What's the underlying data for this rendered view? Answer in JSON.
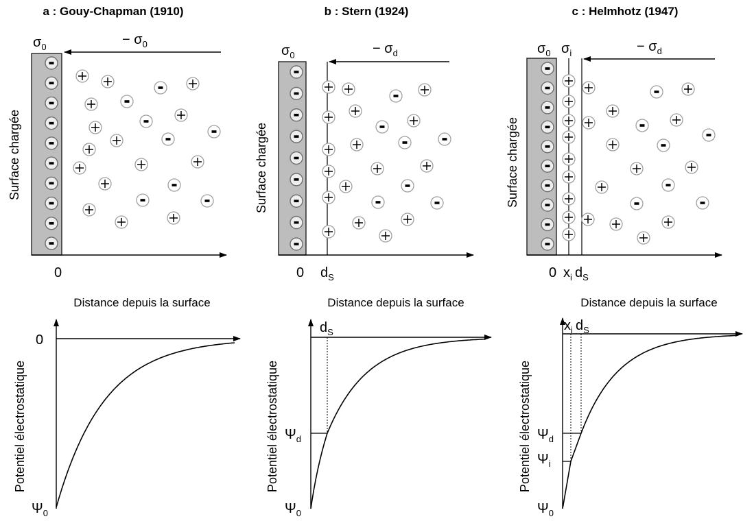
{
  "panels": [
    {
      "title": "a : Gouy-Chapman (1910)",
      "sigma_surface": {
        "base": "σ",
        "sub": "0"
      },
      "sigma_diffuse": {
        "base": "− σ",
        "sub": "0"
      },
      "surface_label": "Surface chargée",
      "x_origin": "0",
      "distance_label": "Distance depuis la surface",
      "potential_label": "Potentiel électrostatique",
      "potential_zero": "0",
      "psi_0": {
        "base": "Ψ",
        "sub": "0"
      }
    },
    {
      "title": "b : Stern (1924)",
      "sigma_surface": {
        "base": "σ",
        "sub": "0"
      },
      "sigma_diffuse": {
        "base": "− σ",
        "sub": "d"
      },
      "surface_label": "Surface chargée",
      "x_origin": "0",
      "x_stern": {
        "base": "d",
        "sub": "S"
      },
      "distance_label": "Distance depuis la surface",
      "potential_label": "Potentiel électrostatique",
      "psi_d": {
        "base": "Ψ",
        "sub": "d"
      },
      "psi_0": {
        "base": "Ψ",
        "sub": "0"
      }
    },
    {
      "title": "c : Helmhotz (1947)",
      "sigma_surface": {
        "base": "σ",
        "sub": "0"
      },
      "sigma_inner": {
        "base": "σ",
        "sub": "i"
      },
      "sigma_diffuse": {
        "base": "− σ",
        "sub": "d"
      },
      "surface_label": "Surface chargée",
      "x_origin": "0",
      "x_inner": {
        "base": "x",
        "sub": "i"
      },
      "x_stern": {
        "base": "d",
        "sub": "S"
      },
      "distance_label": "Distance depuis la surface",
      "potential_label": "Potentiel électrostatique",
      "psi_d": {
        "base": "Ψ",
        "sub": "d"
      },
      "psi_i": {
        "base": "Ψ",
        "sub": "i"
      },
      "psi_0": {
        "base": "Ψ",
        "sub": "0"
      }
    }
  ]
}
